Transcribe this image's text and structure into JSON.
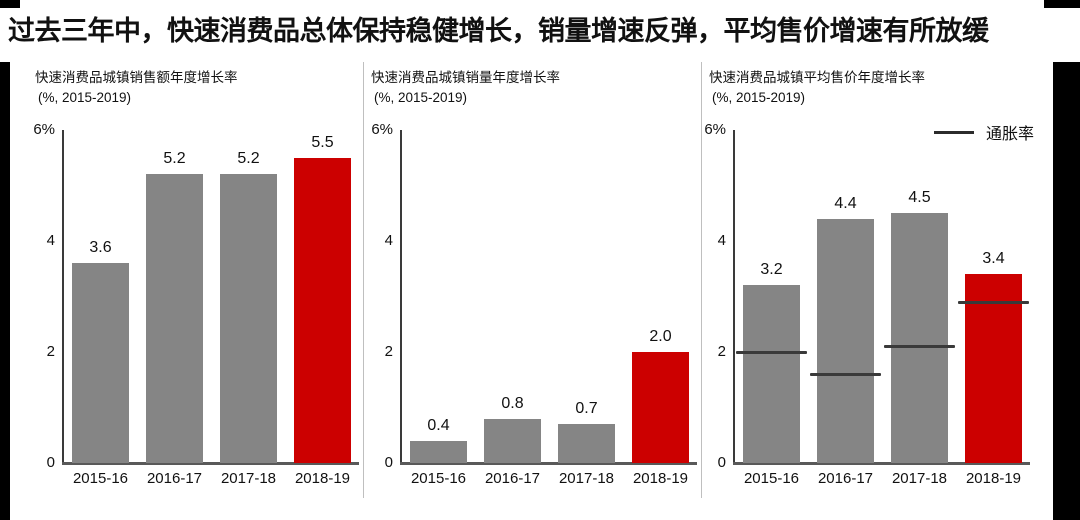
{
  "page": {
    "headline": "过去三年中，快速消费品总体保持稳健增长，销量增速反弹，平均售价增速有所放缓"
  },
  "colors": {
    "bar_gray": "#858585",
    "bar_red": "#CC0000",
    "axis": "#3A3A3A",
    "baseline": "#595959",
    "overlay_line": "#3A3A3A",
    "divider": "#BFBFBF",
    "frame": "#000000"
  },
  "chart_data": [
    {
      "type": "bar",
      "title": "快速消费品城镇销售额年度增长率",
      "subtitle": "(%, 2015-2019)",
      "categories": [
        "2015-16",
        "2016-17",
        "2017-18",
        "2018-19"
      ],
      "values": [
        3.6,
        5.2,
        5.2,
        5.5
      ],
      "data_labels": [
        "3.6",
        "5.2",
        "5.2",
        "5.5"
      ],
      "highlight_index": 3,
      "ylim": [
        0,
        6
      ],
      "yticks": [
        0,
        2,
        4,
        6
      ],
      "ytick_labels": [
        "0",
        "2",
        "4",
        "6%"
      ],
      "grid": false
    },
    {
      "type": "bar",
      "title": "快速消费品城镇销量年度增长率",
      "subtitle": "(%, 2015-2019)",
      "categories": [
        "2015-16",
        "2016-17",
        "2017-18",
        "2018-19"
      ],
      "values": [
        0.4,
        0.8,
        0.7,
        2.0
      ],
      "data_labels": [
        "0.4",
        "0.8",
        "0.7",
        "2.0"
      ],
      "highlight_index": 3,
      "ylim": [
        0,
        6
      ],
      "yticks": [
        0,
        2,
        4,
        6
      ],
      "ytick_labels": [
        "0",
        "2",
        "4",
        "6%"
      ],
      "grid": false
    },
    {
      "type": "bar",
      "title": "快速消费品城镇平均售价年度增长率",
      "subtitle": "(%, 2015-2019)",
      "categories": [
        "2015-16",
        "2016-17",
        "2017-18",
        "2018-19"
      ],
      "values": [
        3.2,
        4.4,
        4.5,
        3.4
      ],
      "data_labels": [
        "3.2",
        "4.4",
        "4.5",
        "3.4"
      ],
      "highlight_index": 3,
      "ylim": [
        0,
        6
      ],
      "yticks": [
        0,
        2,
        4,
        6
      ],
      "ytick_labels": [
        "0",
        "2",
        "4",
        "6%"
      ],
      "grid": false,
      "overlay_line": {
        "label": "通胀率",
        "values": [
          2.0,
          1.6,
          2.1,
          2.9
        ]
      }
    }
  ]
}
